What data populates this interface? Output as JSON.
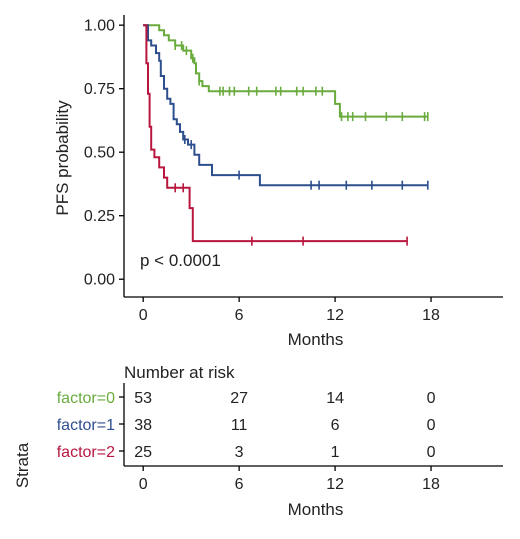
{
  "chart_data": {
    "type": "line",
    "subtype": "kaplan-meier-step",
    "title": "",
    "ylabel": "PFS probability",
    "xlabel": "Months",
    "xlim": [
      -1.2,
      22.5
    ],
    "ylim": [
      -0.07,
      1.04
    ],
    "x_ticks": [
      0,
      6,
      12,
      18
    ],
    "x_tick_labels": [
      "0",
      "6",
      "12",
      "18"
    ],
    "y_ticks": [
      0.0,
      0.25,
      0.5,
      0.75,
      1.0
    ],
    "y_tick_labels": [
      "0.00",
      "0.25",
      "0.50",
      "0.75",
      "1.00"
    ],
    "annotation": "p < 0.0001",
    "legend": "none",
    "grid": false,
    "series": [
      {
        "name": "factor=0",
        "color": "#6aab3d",
        "steps": [
          [
            0,
            1.0
          ],
          [
            1.0,
            0.98
          ],
          [
            1.3,
            0.96
          ],
          [
            1.6,
            0.94
          ],
          [
            2.0,
            0.92
          ],
          [
            2.5,
            0.9
          ],
          [
            3.0,
            0.87
          ],
          [
            3.2,
            0.85
          ],
          [
            3.3,
            0.81
          ],
          [
            3.5,
            0.78
          ],
          [
            3.7,
            0.76
          ],
          [
            4.1,
            0.74
          ],
          [
            12.0,
            0.69
          ],
          [
            12.3,
            0.64
          ],
          [
            17.8,
            0.64
          ]
        ],
        "censored": [
          2.0,
          2.4,
          2.7,
          3.1,
          3.5,
          4.8,
          5.0,
          5.4,
          5.7,
          6.6,
          7.1,
          8.3,
          8.6,
          9.6,
          10.0,
          10.8,
          11.2,
          12.4,
          12.8,
          13.1,
          13.9,
          15.2,
          16.2,
          17.6,
          17.8
        ]
      },
      {
        "name": "factor=1",
        "color": "#2d4f8e",
        "steps": [
          [
            0,
            1.0
          ],
          [
            0.3,
            0.94
          ],
          [
            0.5,
            0.92
          ],
          [
            0.8,
            0.89
          ],
          [
            1.0,
            0.86
          ],
          [
            1.1,
            0.8
          ],
          [
            1.3,
            0.75
          ],
          [
            1.5,
            0.71
          ],
          [
            1.7,
            0.69
          ],
          [
            1.9,
            0.63
          ],
          [
            2.1,
            0.61
          ],
          [
            2.3,
            0.58
          ],
          [
            2.5,
            0.55
          ],
          [
            2.8,
            0.53
          ],
          [
            3.2,
            0.49
          ],
          [
            3.5,
            0.45
          ],
          [
            4.3,
            0.41
          ],
          [
            7.3,
            0.37
          ],
          [
            17.8,
            0.37
          ]
        ],
        "censored": [
          2.6,
          3.0,
          6.0,
          10.5,
          11.0,
          12.7,
          14.3,
          16.2,
          17.8
        ]
      },
      {
        "name": "factor=2",
        "color": "#b8163e",
        "steps": [
          [
            0,
            1.0
          ],
          [
            0.2,
            0.85
          ],
          [
            0.3,
            0.73
          ],
          [
            0.4,
            0.6
          ],
          [
            0.5,
            0.51
          ],
          [
            0.7,
            0.48
          ],
          [
            1.0,
            0.44
          ],
          [
            1.3,
            0.4
          ],
          [
            1.5,
            0.36
          ],
          [
            2.9,
            0.28
          ],
          [
            3.1,
            0.15
          ],
          [
            16.5,
            0.15
          ]
        ],
        "censored": [
          2.0,
          2.5,
          6.8,
          10.0,
          16.5
        ]
      }
    ],
    "risk_table": {
      "header": "Number at risk",
      "strata_label": "Strata",
      "time_points": [
        0,
        6,
        12,
        18
      ],
      "rows": [
        {
          "label": "factor=0",
          "color": "#6aab3d",
          "values": [
            "53",
            "27",
            "14",
            "0"
          ]
        },
        {
          "label": "factor=1",
          "color": "#2d4f8e",
          "values": [
            "38",
            "11",
            "6",
            "0"
          ]
        },
        {
          "label": "factor=2",
          "color": "#b8163e",
          "values": [
            "25",
            "3",
            "1",
            "0"
          ]
        }
      ],
      "xlabel": "Months"
    }
  }
}
